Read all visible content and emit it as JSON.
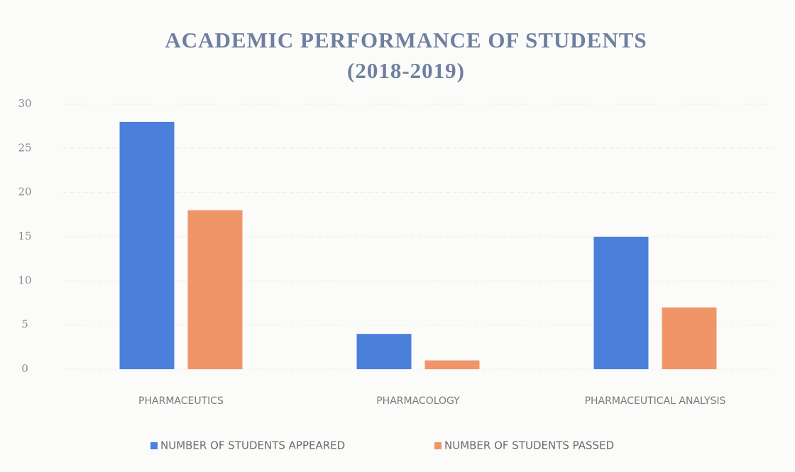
{
  "chart_data": {
    "type": "bar",
    "title": "ACADEMIC PERFORMANCE OF STUDENTS",
    "subtitle": "(2018-2019)",
    "categories": [
      "PHARMACEUTICS",
      "PHARMACOLOGY",
      "PHARMACEUTICAL ANALYSIS"
    ],
    "series": [
      {
        "name": "NUMBER OF STUDENTS APPEARED",
        "color": "#4a7fdb",
        "values": [
          28,
          4,
          15
        ]
      },
      {
        "name": "NUMBER OF STUDENTS PASSED",
        "color": "#ef9568",
        "values": [
          18,
          1,
          7
        ]
      }
    ],
    "ylim": [
      0,
      30
    ],
    "yticks": [
      0,
      5,
      10,
      15,
      20,
      25,
      30
    ],
    "grid": true,
    "legend": "bottom"
  }
}
